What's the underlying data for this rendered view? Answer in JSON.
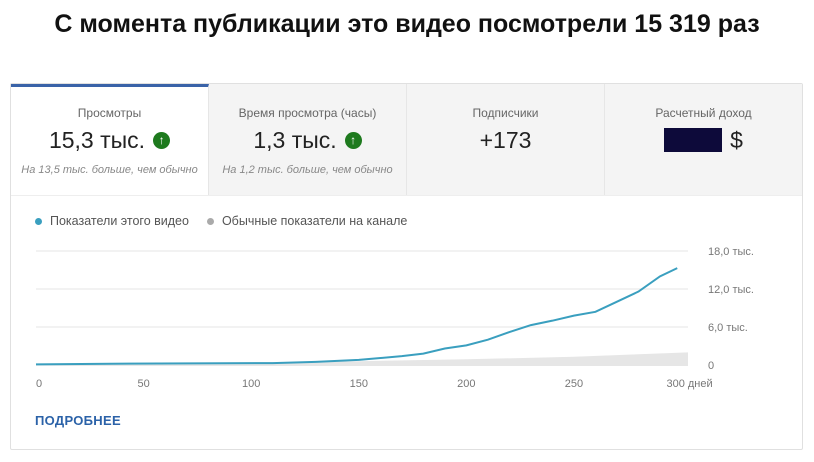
{
  "title": "С момента публикации это видео посмотрели 15 319 раз",
  "tabs": [
    {
      "label": "Просмотры",
      "value": "15,3 тыс.",
      "trend": "up",
      "note": "На 13,5 тыс. больше, чем обычно"
    },
    {
      "label": "Время просмотра (часы)",
      "value": "1,3 тыс.",
      "trend": "up",
      "note": "На 1,2 тыс. больше, чем обычно"
    },
    {
      "label": "Подписчики",
      "value": "+173"
    },
    {
      "label": "Расчетный доход",
      "value": "$"
    }
  ],
  "more_label": "ПОДРОБНЕЕ",
  "colors": {
    "series": "#3a9fbf",
    "typical": "#e6e6e6",
    "accent": "#3a63a8",
    "up": "#1e7a1e"
  },
  "chart_data": {
    "type": "line",
    "legend_position": "top-left",
    "grid": true,
    "xlim": [
      0,
      303
    ],
    "ylim": [
      0,
      18000
    ],
    "x_ticks": [
      "0",
      "50",
      "100",
      "150",
      "200",
      "250",
      "300 дней"
    ],
    "y_ticks": [
      "0",
      "6,0 тыс.",
      "12,0 тыс.",
      "18,0 тыс."
    ],
    "series": [
      {
        "name": "Показатели этого видео",
        "x": [
          0,
          35,
          110,
          130,
          150,
          170,
          180,
          190,
          200,
          210,
          220,
          230,
          240,
          250,
          260,
          270,
          280,
          290,
          298
        ],
        "y": [
          100,
          200,
          300,
          500,
          800,
          1400,
          1800,
          2600,
          3100,
          4000,
          5200,
          6300,
          7000,
          7800,
          8400,
          10000,
          11600,
          14000,
          15300
        ]
      },
      {
        "name": "Обычные показатели на канале",
        "type": "band",
        "x": [
          0,
          100,
          150,
          200,
          250,
          303
        ],
        "y": [
          0,
          300,
          600,
          900,
          1300,
          2000
        ]
      }
    ]
  }
}
